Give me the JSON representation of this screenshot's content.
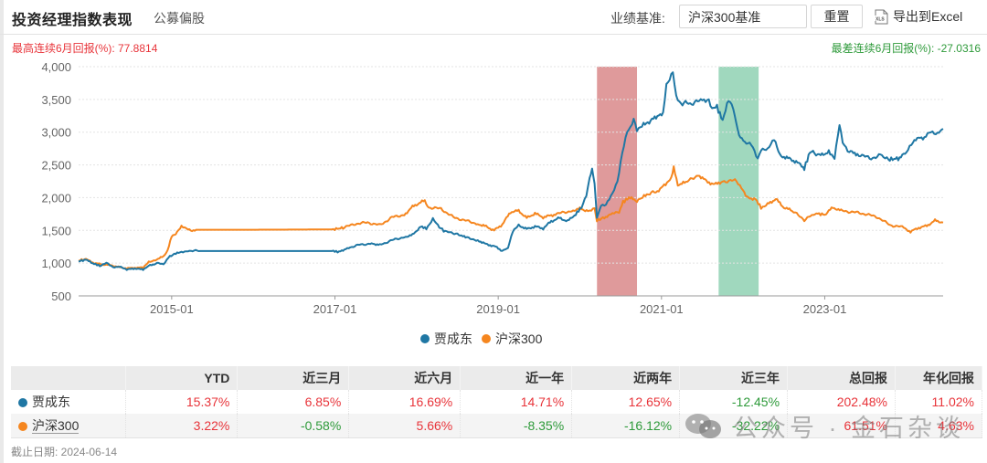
{
  "header": {
    "title": "投资经理指数表现",
    "subtitle": "公募偏股",
    "benchmark_label": "业绩基准:",
    "benchmark_value": "沪深300基准",
    "reset_label": "重置",
    "export_icon": "xls-file-icon",
    "export_label": "导出到Excel"
  },
  "stats": {
    "max_label": "最高连续6月回报(%): 77.8814",
    "min_label": "最差连续6月回报(%): -27.0316",
    "max_color": "#e8343a",
    "min_color": "#2e9a3a"
  },
  "chart_data": {
    "type": "line",
    "title": "投资经理指数表现",
    "xlabel": "",
    "ylabel": "",
    "ylim": [
      500,
      4000
    ],
    "yticks": [
      500,
      1000,
      1500,
      2000,
      2500,
      3000,
      3500,
      4000
    ],
    "ytick_labels": [
      "500",
      "1,000",
      "1,500",
      "2,000",
      "2,500",
      "3,000",
      "3,500",
      "4,000"
    ],
    "xlim": [
      2013.86,
      2024.45
    ],
    "xticks": [
      2015.0,
      2017.0,
      2019.0,
      2021.0,
      2023.0
    ],
    "xtick_labels": [
      "2015-01",
      "2017-01",
      "2019-01",
      "2021-01",
      "2023-01"
    ],
    "grid": true,
    "legend_position": "bottom",
    "highlight_bands": [
      {
        "name": "best-6-month",
        "start": 2020.21,
        "end": 2020.7,
        "color": "#d9888a"
      },
      {
        "name": "worst-6-month",
        "start": 2021.7,
        "end": 2022.19,
        "color": "#8fd1b3"
      }
    ],
    "series": [
      {
        "name": "贾成东",
        "color": "#1f77a4",
        "points": [
          [
            2013.86,
            1030
          ],
          [
            2013.95,
            1050
          ],
          [
            2014.05,
            990
          ],
          [
            2014.12,
            960
          ],
          [
            2014.2,
            1000
          ],
          [
            2014.28,
            940
          ],
          [
            2014.36,
            950
          ],
          [
            2014.45,
            900
          ],
          [
            2014.55,
            920
          ],
          [
            2014.65,
            900
          ],
          [
            2014.72,
            960
          ],
          [
            2014.82,
            1000
          ],
          [
            2014.9,
            980
          ],
          [
            2014.96,
            1090
          ],
          [
            2015.05,
            1150
          ],
          [
            2015.12,
            1170
          ],
          [
            2015.2,
            1190
          ],
          [
            2015.35,
            1185
          ],
          [
            2015.6,
            1185
          ],
          [
            2016.0,
            1185
          ],
          [
            2016.5,
            1185
          ],
          [
            2016.98,
            1185
          ],
          [
            2017.05,
            1170
          ],
          [
            2017.15,
            1230
          ],
          [
            2017.3,
            1280
          ],
          [
            2017.45,
            1300
          ],
          [
            2017.55,
            1280
          ],
          [
            2017.7,
            1350
          ],
          [
            2017.85,
            1400
          ],
          [
            2017.95,
            1430
          ],
          [
            2018.05,
            1560
          ],
          [
            2018.12,
            1530
          ],
          [
            2018.2,
            1680
          ],
          [
            2018.26,
            1570
          ],
          [
            2018.35,
            1480
          ],
          [
            2018.5,
            1450
          ],
          [
            2018.6,
            1390
          ],
          [
            2018.75,
            1350
          ],
          [
            2018.85,
            1290
          ],
          [
            2018.95,
            1260
          ],
          [
            2019.05,
            1190
          ],
          [
            2019.12,
            1230
          ],
          [
            2019.18,
            1490
          ],
          [
            2019.25,
            1580
          ],
          [
            2019.35,
            1520
          ],
          [
            2019.45,
            1560
          ],
          [
            2019.55,
            1530
          ],
          [
            2019.65,
            1640
          ],
          [
            2019.75,
            1690
          ],
          [
            2019.85,
            1640
          ],
          [
            2019.95,
            1750
          ],
          [
            2020.02,
            1850
          ],
          [
            2020.08,
            2050
          ],
          [
            2020.12,
            2300
          ],
          [
            2020.15,
            2450
          ],
          [
            2020.18,
            2200
          ],
          [
            2020.21,
            1700
          ],
          [
            2020.26,
            1890
          ],
          [
            2020.32,
            1900
          ],
          [
            2020.4,
            2050
          ],
          [
            2020.46,
            2250
          ],
          [
            2020.52,
            2700
          ],
          [
            2020.58,
            3000
          ],
          [
            2020.62,
            3050
          ],
          [
            2020.66,
            3200
          ],
          [
            2020.7,
            3050
          ],
          [
            2020.78,
            3120
          ],
          [
            2020.85,
            3150
          ],
          [
            2020.95,
            3250
          ],
          [
            2021.02,
            3280
          ],
          [
            2021.06,
            3700
          ],
          [
            2021.1,
            3820
          ],
          [
            2021.14,
            3950
          ],
          [
            2021.18,
            3550
          ],
          [
            2021.22,
            3450
          ],
          [
            2021.35,
            3440
          ],
          [
            2021.5,
            3480
          ],
          [
            2021.58,
            3510
          ],
          [
            2021.62,
            3350
          ],
          [
            2021.68,
            3380
          ],
          [
            2021.75,
            3180
          ],
          [
            2021.82,
            3500
          ],
          [
            2021.88,
            3350
          ],
          [
            2021.95,
            2950
          ],
          [
            2022.02,
            2850
          ],
          [
            2022.1,
            2800
          ],
          [
            2022.18,
            2600
          ],
          [
            2022.22,
            2750
          ],
          [
            2022.3,
            2720
          ],
          [
            2022.38,
            2900
          ],
          [
            2022.45,
            2650
          ],
          [
            2022.55,
            2600
          ],
          [
            2022.65,
            2550
          ],
          [
            2022.75,
            2450
          ],
          [
            2022.82,
            2700
          ],
          [
            2022.95,
            2650
          ],
          [
            2023.05,
            2700
          ],
          [
            2023.12,
            2600
          ],
          [
            2023.18,
            3100
          ],
          [
            2023.22,
            2850
          ],
          [
            2023.3,
            2700
          ],
          [
            2023.4,
            2670
          ],
          [
            2023.55,
            2600
          ],
          [
            2023.7,
            2650
          ],
          [
            2023.78,
            2580
          ],
          [
            2023.9,
            2600
          ],
          [
            2024.0,
            2680
          ],
          [
            2024.08,
            2850
          ],
          [
            2024.15,
            2920
          ],
          [
            2024.22,
            2900
          ],
          [
            2024.3,
            3020
          ],
          [
            2024.38,
            2980
          ],
          [
            2024.45,
            3050
          ]
        ]
      },
      {
        "name": "沪深300",
        "color": "#f5861f",
        "points": [
          [
            2013.86,
            1040
          ],
          [
            2013.95,
            1060
          ],
          [
            2014.05,
            1000
          ],
          [
            2014.15,
            980
          ],
          [
            2014.25,
            970
          ],
          [
            2014.35,
            940
          ],
          [
            2014.45,
            920
          ],
          [
            2014.55,
            930
          ],
          [
            2014.65,
            930
          ],
          [
            2014.72,
            1020
          ],
          [
            2014.8,
            1050
          ],
          [
            2014.9,
            1100
          ],
          [
            2014.95,
            1200
          ],
          [
            2015.0,
            1400
          ],
          [
            2015.05,
            1450
          ],
          [
            2015.12,
            1560
          ],
          [
            2015.2,
            1530
          ],
          [
            2015.25,
            1480
          ],
          [
            2015.3,
            1510
          ],
          [
            2015.6,
            1510
          ],
          [
            2016.0,
            1510
          ],
          [
            2016.5,
            1512
          ],
          [
            2016.98,
            1515
          ],
          [
            2017.1,
            1540
          ],
          [
            2017.25,
            1600
          ],
          [
            2017.4,
            1620
          ],
          [
            2017.55,
            1580
          ],
          [
            2017.7,
            1700
          ],
          [
            2017.85,
            1740
          ],
          [
            2017.95,
            1860
          ],
          [
            2018.05,
            1930
          ],
          [
            2018.1,
            1950
          ],
          [
            2018.15,
            1850
          ],
          [
            2018.3,
            1830
          ],
          [
            2018.45,
            1700
          ],
          [
            2018.6,
            1650
          ],
          [
            2018.75,
            1600
          ],
          [
            2018.85,
            1560
          ],
          [
            2018.95,
            1500
          ],
          [
            2019.05,
            1590
          ],
          [
            2019.15,
            1780
          ],
          [
            2019.25,
            1800
          ],
          [
            2019.35,
            1690
          ],
          [
            2019.45,
            1760
          ],
          [
            2019.55,
            1700
          ],
          [
            2019.65,
            1730
          ],
          [
            2019.75,
            1760
          ],
          [
            2019.9,
            1800
          ],
          [
            2020.0,
            1830
          ],
          [
            2020.1,
            1800
          ],
          [
            2020.18,
            1830
          ],
          [
            2020.21,
            1650
          ],
          [
            2020.3,
            1700
          ],
          [
            2020.4,
            1750
          ],
          [
            2020.48,
            1780
          ],
          [
            2020.53,
            1930
          ],
          [
            2020.6,
            2000
          ],
          [
            2020.7,
            1950
          ],
          [
            2020.82,
            2050
          ],
          [
            2020.95,
            2100
          ],
          [
            2021.05,
            2200
          ],
          [
            2021.12,
            2300
          ],
          [
            2021.15,
            2450
          ],
          [
            2021.2,
            2200
          ],
          [
            2021.3,
            2230
          ],
          [
            2021.45,
            2350
          ],
          [
            2021.55,
            2250
          ],
          [
            2021.65,
            2200
          ],
          [
            2021.75,
            2250
          ],
          [
            2021.9,
            2260
          ],
          [
            2021.98,
            2150
          ],
          [
            2022.05,
            2000
          ],
          [
            2022.15,
            1980
          ],
          [
            2022.22,
            1850
          ],
          [
            2022.3,
            1900
          ],
          [
            2022.4,
            1980
          ],
          [
            2022.5,
            1850
          ],
          [
            2022.6,
            1800
          ],
          [
            2022.75,
            1660
          ],
          [
            2022.88,
            1760
          ],
          [
            2023.0,
            1740
          ],
          [
            2023.1,
            1850
          ],
          [
            2023.2,
            1800
          ],
          [
            2023.35,
            1780
          ],
          [
            2023.5,
            1750
          ],
          [
            2023.65,
            1700
          ],
          [
            2023.8,
            1580
          ],
          [
            2023.95,
            1550
          ],
          [
            2024.05,
            1480
          ],
          [
            2024.15,
            1540
          ],
          [
            2024.25,
            1570
          ],
          [
            2024.35,
            1650
          ],
          [
            2024.45,
            1620
          ]
        ]
      }
    ]
  },
  "legend": {
    "items": [
      {
        "label": "贾成东",
        "color": "#1f77a4"
      },
      {
        "label": "沪深300",
        "color": "#f5861f"
      }
    ]
  },
  "table": {
    "headers": [
      "",
      "YTD",
      "近三月",
      "近六月",
      "近一年",
      "近两年",
      "近三年",
      "总回报",
      "年化回报"
    ],
    "rows": [
      {
        "name": "贾成东",
        "color": "#1f77a4",
        "values": [
          "15.37%",
          "6.85%",
          "16.69%",
          "14.71%",
          "12.65%",
          "-12.45%",
          "202.48%",
          "11.02%"
        ]
      },
      {
        "name": "沪深300",
        "color": "#f5861f",
        "values": [
          "3.22%",
          "-0.58%",
          "5.66%",
          "-8.35%",
          "-16.12%",
          "-32.22%",
          "61.51%",
          "4.63%"
        ]
      }
    ]
  },
  "footnote": "截止日期: 2024-06-14",
  "watermark": {
    "icon": "wechat-icon",
    "text": "公众号 · 金石杂谈"
  }
}
